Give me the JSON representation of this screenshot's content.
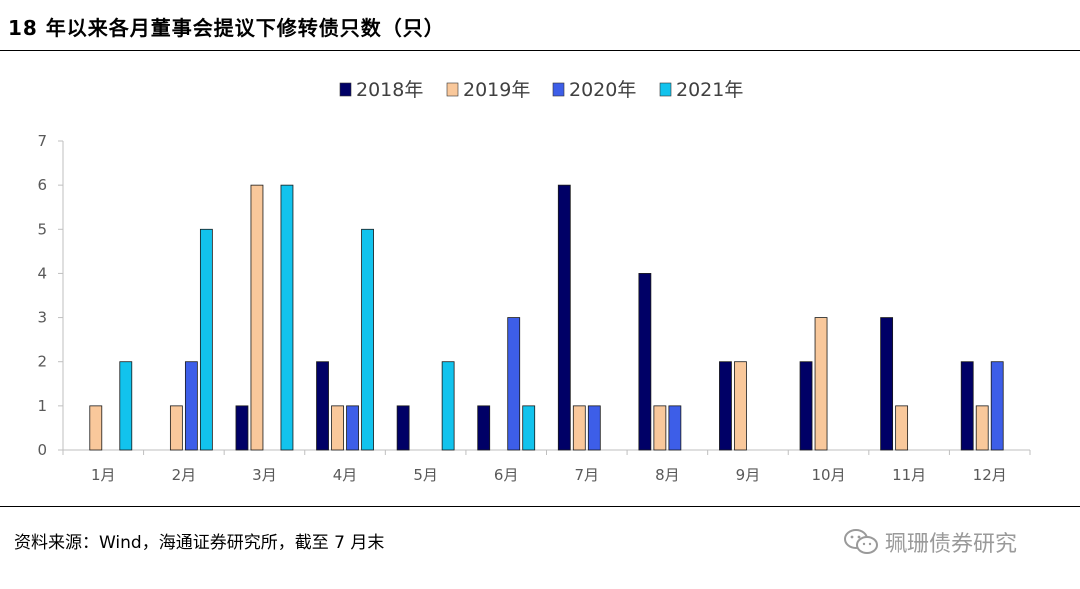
{
  "title": "18 年以来各月董事会提议下修转债只数（只）",
  "source": "资料来源：Wind，海通证券研究所，截至 7 月末",
  "watermark": "珮珊债券研究",
  "watermark_icon": "wechat-icon",
  "colors": {
    "2018年": "#000066",
    "2019年": "#f9c89b",
    "2020年": "#3d5ee8",
    "2021年": "#12c3ed",
    "axis": "#bfbfbf",
    "text": "#595959"
  },
  "chart_data": {
    "type": "bar",
    "title": "",
    "xlabel": "",
    "ylabel": "",
    "ylim": [
      0,
      7
    ],
    "yticks": [
      0,
      1,
      2,
      3,
      4,
      5,
      6,
      7
    ],
    "grid": false,
    "legend_position": "top",
    "categories": [
      "1月",
      "2月",
      "3月",
      "4月",
      "5月",
      "6月",
      "7月",
      "8月",
      "9月",
      "10月",
      "11月",
      "12月"
    ],
    "series": [
      {
        "name": "2018年",
        "values": [
          0,
          0,
          1,
          2,
          1,
          1,
          6,
          4,
          2,
          2,
          3,
          2
        ]
      },
      {
        "name": "2019年",
        "values": [
          1,
          1,
          6,
          1,
          0,
          0,
          1,
          1,
          2,
          3,
          1,
          1
        ]
      },
      {
        "name": "2020年",
        "values": [
          0,
          2,
          0,
          1,
          0,
          3,
          1,
          1,
          0,
          0,
          0,
          2
        ]
      },
      {
        "name": "2021年",
        "values": [
          2,
          5,
          6,
          5,
          2,
          1,
          0,
          0,
          0,
          0,
          0,
          0
        ]
      }
    ]
  }
}
